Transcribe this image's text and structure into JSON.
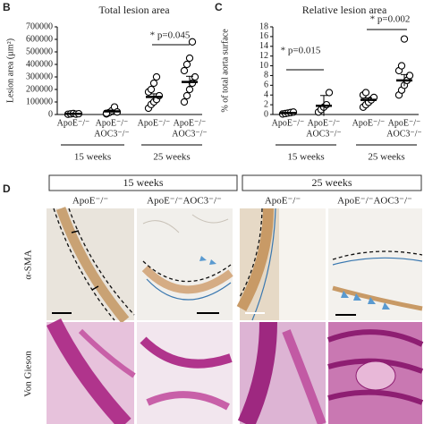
{
  "panel_labels": [
    "B",
    "C",
    "D"
  ],
  "chart_data": [
    {
      "type": "dot",
      "title": "Total lesion area",
      "y_label": "Lesion area (µm²)",
      "ylim": [
        0,
        700000
      ],
      "yticks": [
        0,
        100000,
        200000,
        300000,
        400000,
        500000,
        600000,
        700000
      ],
      "categories": [
        [
          "ApoE⁻/⁻"
        ],
        [
          "ApoE⁻/⁻",
          "AOC3⁻/⁻"
        ],
        [
          "ApoE⁻/⁻"
        ],
        [
          "ApoE⁻/⁻",
          "AOC3⁻/⁻"
        ]
      ],
      "groups": [
        "15 weeks",
        "25 weeks"
      ],
      "color": "#000000",
      "values": [
        [
          2000,
          5000,
          8000,
          3000,
          6000
        ],
        [
          5000,
          15000,
          30000,
          60000,
          20000,
          10000
        ],
        [
          50000,
          80000,
          100000,
          120000,
          150000,
          180000,
          200000,
          250000,
          300000
        ],
        [
          100000,
          150000,
          200000,
          250000,
          300000,
          350000,
          400000,
          450000,
          580000
        ]
      ],
      "means": [
        5000,
        25000,
        140000,
        260000
      ],
      "errors": [
        2000,
        10000,
        25000,
        45000
      ],
      "annotations": [
        "* p=0.045"
      ]
    },
    {
      "type": "dot",
      "title": "Relative lesion area",
      "y_label": "% of total aorta surface",
      "ylim": [
        0,
        18
      ],
      "yticks": [
        0,
        2,
        4,
        6,
        8,
        10,
        12,
        14,
        16,
        18
      ],
      "categories": [
        [
          "ApoE⁻/⁻"
        ],
        [
          "ApoE⁻/⁻",
          "AOC3⁻/⁻"
        ],
        [
          "ApoE⁻/⁻"
        ],
        [
          "ApoE⁻/⁻",
          "AOC3⁻/⁻"
        ]
      ],
      "groups": [
        "15 weeks",
        "25 weeks"
      ],
      "color": "#000000",
      "values": [
        [
          0.1,
          0.2,
          0.3,
          0.4,
          0.5
        ],
        [
          0.5,
          1,
          1.5,
          2,
          4.5
        ],
        [
          1.5,
          2,
          2.5,
          3,
          3.5,
          4,
          4.5
        ],
        [
          4,
          5,
          6,
          7,
          8,
          9,
          10,
          15.5
        ]
      ],
      "means": [
        0.3,
        1.8,
        3,
        7
      ],
      "errors": [
        0.1,
        2.1,
        0.4,
        1.2
      ],
      "annotations": [
        "* p=0.015",
        "* p=0.002"
      ]
    }
  ],
  "figure_d": {
    "headers": [
      "15 weeks",
      "25 weeks"
    ],
    "columns": [
      "ApoE⁻/⁻",
      "ApoE⁻/⁻AOC3⁻/⁻",
      "ApoE⁻/⁻",
      "ApoE⁻/⁻AOC3⁻/⁻"
    ],
    "rows": [
      "α-SMA",
      "Von Gieson"
    ]
  }
}
